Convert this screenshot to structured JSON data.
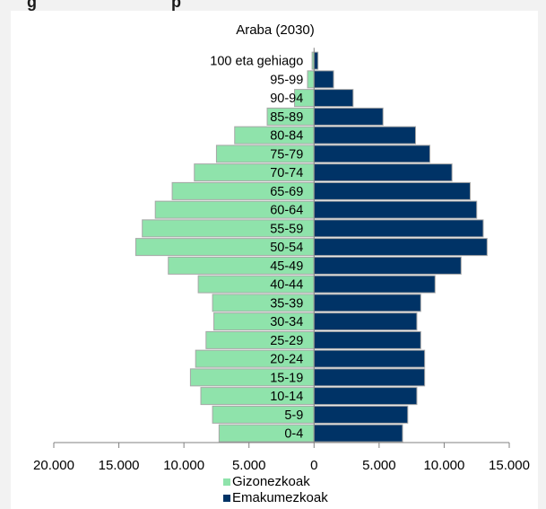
{
  "header": {
    "title_left": "g",
    "title_right": "p"
  },
  "colors": {
    "male": "#8fe3ab",
    "female": "#003366",
    "bar_stroke": "#a6a6a6",
    "axis": "#808080"
  },
  "chart_data": {
    "type": "bar",
    "orientation": "horizontal",
    "title": "Araba (2030)",
    "categories": [
      "0-4",
      "5-9",
      "10-14",
      "15-19",
      "20-24",
      "25-29",
      "30-34",
      "35-39",
      "40-44",
      "45-49",
      "50-54",
      "55-59",
      "60-64",
      "65-69",
      "70-74",
      "75-79",
      "80-84",
      "85-89",
      "90-94",
      "95-99",
      "100 eta gehiago"
    ],
    "series": [
      {
        "name": "Gizonezkoak",
        "side": "left",
        "values": [
          7300,
          7800,
          8700,
          9500,
          9100,
          8300,
          7700,
          7800,
          8900,
          11200,
          13700,
          13200,
          12200,
          10900,
          9200,
          7500,
          6100,
          3600,
          1500,
          500,
          150
        ]
      },
      {
        "name": "Emakumezkoak",
        "side": "right",
        "values": [
          6800,
          7200,
          7900,
          8500,
          8500,
          8200,
          7900,
          8200,
          9300,
          11300,
          13300,
          13000,
          12500,
          12000,
          10600,
          8900,
          7800,
          5300,
          3000,
          1500,
          300
        ]
      }
    ],
    "xlim": [
      -20000,
      15000
    ],
    "xticks": [
      -20000,
      -15000,
      -10000,
      -5000,
      0,
      5000,
      10000,
      15000
    ],
    "xtick_labels": [
      "20.000",
      "15.000",
      "10.000",
      "5.000",
      "0",
      "5.000",
      "10.000",
      "15.000"
    ],
    "grid": false,
    "legend_position": "bottom"
  }
}
